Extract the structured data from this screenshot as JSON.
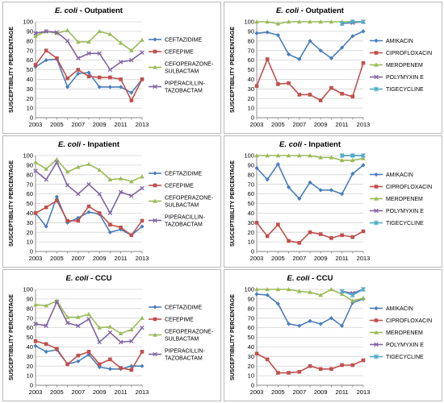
{
  "chart_data": [
    {
      "type": "line",
      "title_italic": "E. coli",
      "title_rest": " - Outpatient",
      "ylabel": "SUSCEPTIBILITY PERCENTAGE",
      "ylim": [
        0,
        100
      ],
      "yticks": [
        0,
        10,
        20,
        30,
        40,
        50,
        60,
        70,
        80,
        90,
        100
      ],
      "x": [
        2003,
        2004,
        2005,
        2006,
        2007,
        2008,
        2009,
        2010,
        2011,
        2012,
        2013
      ],
      "xtick_labels": [
        "2003",
        "2005",
        "2007",
        "2009",
        "2011",
        "2013"
      ],
      "legend": "right",
      "series": [
        {
          "name": [
            "CEFTAZIDIME"
          ],
          "color": "#4a7ebb",
          "marker": "diamond",
          "values": [
            53,
            60,
            61,
            32,
            46,
            47,
            32,
            32,
            32,
            26,
            40
          ]
        },
        {
          "name": [
            "CEFEPIME"
          ],
          "color": "#c0504d",
          "marker": "square",
          "values": [
            55,
            70,
            62,
            41,
            50,
            43,
            42,
            42,
            40,
            18,
            40
          ]
        },
        {
          "name": [
            "CEFOPERAZONE-",
            "SULBACTAM"
          ],
          "color": "#9bbb59",
          "marker": "triangle",
          "values": [
            85,
            90,
            88,
            91,
            79,
            79,
            90,
            87,
            78,
            70,
            81
          ]
        },
        {
          "name": [
            "PIPERACILLIN-",
            "TAZOBACTAM"
          ],
          "color": "#8064a2",
          "marker": "x",
          "values": [
            88,
            90,
            89,
            80,
            62,
            67,
            67,
            50,
            58,
            60,
            68
          ]
        }
      ]
    },
    {
      "type": "line",
      "title_italic": "E. coli",
      "title_rest": " - Outpatient",
      "ylabel": "SUSCEPTIBILITY PERCENTAGE",
      "ylim": [
        0,
        100
      ],
      "yticks": [
        0,
        10,
        20,
        30,
        40,
        50,
        60,
        70,
        80,
        90,
        100
      ],
      "x": [
        2003,
        2004,
        2005,
        2006,
        2007,
        2008,
        2009,
        2010,
        2011,
        2012,
        2013
      ],
      "xtick_labels": [
        "2003",
        "2005",
        "2007",
        "2009",
        "2011",
        "2013"
      ],
      "legend": "right",
      "series": [
        {
          "name": [
            "AMIKACIN"
          ],
          "color": "#4a7ebb",
          "marker": "diamond",
          "values": [
            88,
            89,
            86,
            66,
            61,
            80,
            70,
            62,
            73,
            85,
            90
          ]
        },
        {
          "name": [
            "CIPROFLOXACIN"
          ],
          "color": "#c0504d",
          "marker": "square",
          "values": [
            33,
            61,
            35,
            36,
            24,
            24,
            18,
            31,
            25,
            22,
            57
          ]
        },
        {
          "name": [
            "MEROPENEM"
          ],
          "color": "#9bbb59",
          "marker": "triangle",
          "values": [
            100,
            100,
            98,
            100,
            100,
            100,
            100,
            100,
            100,
            100,
            100
          ]
        },
        {
          "name": [
            "POLYMYXIN E"
          ],
          "color": "#8064a2",
          "marker": "x",
          "values": [
            null,
            null,
            null,
            null,
            null,
            null,
            null,
            null,
            98,
            99,
            100
          ]
        },
        {
          "name": [
            "TIGECYCLINE"
          ],
          "color": "#4bacc6",
          "marker": "star",
          "values": [
            null,
            null,
            null,
            null,
            null,
            null,
            null,
            null,
            98,
            100,
            100
          ]
        }
      ]
    },
    {
      "type": "line",
      "title_italic": "E. coli",
      "title_rest": " - Inpatient",
      "ylabel": "SUSCEPTIBILITY PERCENTAGE",
      "ylim": [
        0,
        100
      ],
      "yticks": [
        0,
        10,
        20,
        30,
        40,
        50,
        60,
        70,
        80,
        90,
        100
      ],
      "x": [
        2003,
        2004,
        2005,
        2006,
        2007,
        2008,
        2009,
        2010,
        2011,
        2012,
        2013
      ],
      "xtick_labels": [
        "2003",
        "2005",
        "2007",
        "2009",
        "2011",
        "2013"
      ],
      "legend": "right",
      "series": [
        {
          "name": [
            "CEFTAZIDIME"
          ],
          "color": "#4a7ebb",
          "marker": "diamond",
          "values": [
            40,
            26,
            57,
            30,
            35,
            41,
            39,
            20,
            23,
            17,
            26
          ]
        },
        {
          "name": [
            "CEFEPIME"
          ],
          "color": "#c0504d",
          "marker": "square",
          "values": [
            40,
            46,
            53,
            32,
            32,
            47,
            40,
            28,
            25,
            17,
            32
          ]
        },
        {
          "name": [
            "CEFOPERAZONE-",
            "SULBACTAM"
          ],
          "color": "#9bbb59",
          "marker": "triangle",
          "values": [
            93,
            86,
            96,
            83,
            88,
            91,
            85,
            75,
            76,
            73,
            78
          ]
        },
        {
          "name": [
            "PIPERACILLIN-",
            "TAZOBACTAM"
          ],
          "color": "#8064a2",
          "marker": "x",
          "values": [
            84,
            75,
            93,
            69,
            60,
            70,
            60,
            40,
            62,
            58,
            66
          ]
        }
      ]
    },
    {
      "type": "line",
      "title_italic": "E. coli",
      "title_rest": " - Inpatient",
      "ylabel": "SUSCEPTIBILITY PERCENTAGE",
      "ylim": [
        0,
        100
      ],
      "yticks": [
        0,
        10,
        20,
        30,
        40,
        50,
        60,
        70,
        80,
        90,
        100
      ],
      "x": [
        2003,
        2004,
        2005,
        2006,
        2007,
        2008,
        2009,
        2010,
        2011,
        2012,
        2013
      ],
      "xtick_labels": [
        "2003",
        "2005",
        "2007",
        "2009",
        "2011",
        "2013"
      ],
      "legend": "right",
      "series": [
        {
          "name": [
            "AMIKACIN"
          ],
          "color": "#4a7ebb",
          "marker": "diamond",
          "values": [
            87,
            75,
            91,
            67,
            55,
            72,
            64,
            64,
            60,
            81,
            90
          ]
        },
        {
          "name": [
            "CIPROFLOXACIN"
          ],
          "color": "#c0504d",
          "marker": "square",
          "values": [
            30,
            16,
            28,
            11,
            9,
            20,
            18,
            14,
            17,
            15,
            21
          ]
        },
        {
          "name": [
            "MEROPENEM"
          ],
          "color": "#9bbb59",
          "marker": "triangle",
          "values": [
            100,
            100,
            100,
            100,
            100,
            100,
            98,
            98,
            95,
            95,
            97
          ]
        },
        {
          "name": [
            "POLYMYXIN E"
          ],
          "color": "#8064a2",
          "marker": "x",
          "values": [
            null,
            null,
            null,
            null,
            null,
            null,
            null,
            null,
            100,
            100,
            100
          ]
        },
        {
          "name": [
            "TIGECYCLINE"
          ],
          "color": "#4bacc6",
          "marker": "star",
          "values": [
            null,
            null,
            null,
            null,
            null,
            null,
            null,
            null,
            100,
            100,
            100
          ]
        }
      ]
    },
    {
      "type": "line",
      "title_italic": "E. coli",
      "title_rest": " - CCU",
      "ylabel": "SUSCEPTIBILITY PERCENTAGE",
      "ylim": [
        0,
        100
      ],
      "yticks": [
        0,
        10,
        20,
        30,
        40,
        50,
        60,
        70,
        80,
        90,
        100
      ],
      "x": [
        2003,
        2004,
        2005,
        2006,
        2007,
        2008,
        2009,
        2010,
        2011,
        2012,
        2013
      ],
      "xtick_labels": [
        "2003",
        "2005",
        "2007",
        "2009",
        "2011",
        "2013"
      ],
      "legend": "right",
      "series": [
        {
          "name": [
            "CEFTAZIDIME"
          ],
          "color": "#4a7ebb",
          "marker": "diamond",
          "values": [
            41,
            35,
            37,
            22,
            25,
            32,
            19,
            17,
            17,
            20,
            20
          ]
        },
        {
          "name": [
            "CEFEPIME"
          ],
          "color": "#c0504d",
          "marker": "square",
          "values": [
            46,
            43,
            38,
            22,
            31,
            35,
            22,
            27,
            18,
            16,
            35
          ]
        },
        {
          "name": [
            "CEFOPERAZONE-",
            "SULBACTAM"
          ],
          "color": "#9bbb59",
          "marker": "triangle",
          "values": [
            84,
            83,
            88,
            71,
            71,
            74,
            60,
            61,
            54,
            58,
            70
          ]
        },
        {
          "name": [
            "PIPERACILLIN-",
            "TAZOBACTAM"
          ],
          "color": "#8064a2",
          "marker": "x",
          "values": [
            64,
            62,
            87,
            65,
            62,
            69,
            45,
            55,
            45,
            46,
            60
          ]
        }
      ]
    },
    {
      "type": "line",
      "title_italic": "E. coli",
      "title_rest": " - CCU",
      "ylabel": "SUSCEPTIBILITY PERCENTAGE",
      "ylim": [
        0,
        100
      ],
      "yticks": [
        0,
        10,
        20,
        30,
        40,
        50,
        60,
        70,
        80,
        90,
        100
      ],
      "x": [
        2003,
        2004,
        2005,
        2006,
        2007,
        2008,
        2009,
        2010,
        2011,
        2012,
        2013
      ],
      "xtick_labels": [
        "2003",
        "2005",
        "2007",
        "2009",
        "2011",
        "2013"
      ],
      "legend": "right",
      "series": [
        {
          "name": [
            "AMIKACIN"
          ],
          "color": "#4a7ebb",
          "marker": "diamond",
          "values": [
            95,
            94,
            85,
            64,
            62,
            67,
            64,
            70,
            62,
            86,
            90
          ]
        },
        {
          "name": [
            "CIPROFLOXACIN"
          ],
          "color": "#c0504d",
          "marker": "square",
          "values": [
            33,
            27,
            13,
            13,
            14,
            20,
            17,
            17,
            21,
            21,
            26
          ]
        },
        {
          "name": [
            "MEROPENEM"
          ],
          "color": "#9bbb59",
          "marker": "triangle",
          "values": [
            100,
            100,
            100,
            100,
            98,
            97,
            94,
            100,
            95,
            88,
            91
          ]
        },
        {
          "name": [
            "POLYMYXIN E"
          ],
          "color": "#8064a2",
          "marker": "x",
          "values": [
            null,
            null,
            null,
            null,
            null,
            null,
            null,
            null,
            98,
            96,
            100
          ]
        },
        {
          "name": [
            "TIGECYCLINE"
          ],
          "color": "#4bacc6",
          "marker": "star",
          "values": [
            null,
            null,
            null,
            null,
            null,
            null,
            null,
            null,
            98,
            94,
            100
          ]
        }
      ]
    }
  ]
}
